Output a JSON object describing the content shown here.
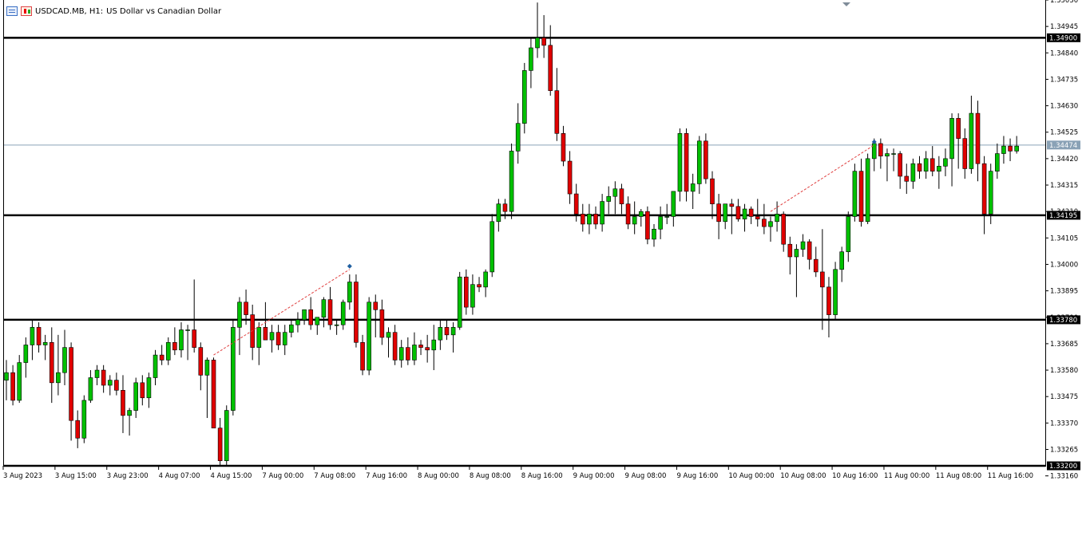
{
  "window": {
    "symbol_label": "USDCAD.MB, H1:",
    "description": "US Dollar vs Canadian Dollar"
  },
  "icons": [
    "list-icon",
    "candlestick-icon"
  ],
  "colors": {
    "bull": "#00c000",
    "bear": "#e00000",
    "wick": "#000000",
    "horizontal_line": "#000000",
    "bid_line": "#8aa2b6",
    "trend_dashed": "#e04040",
    "tag_background_bid": "#8aa2b6"
  },
  "chart_data": {
    "type": "candlestick",
    "symbol": "USDCAD.MB",
    "timeframe": "H1",
    "ylim": [
      1.332,
      1.3505
    ],
    "y_ticks": [
      "1.35050",
      "1.34945",
      "1.34840",
      "1.34735",
      "1.34630",
      "1.34525",
      "1.34420",
      "1.34315",
      "1.34210",
      "1.34105",
      "1.34000",
      "1.33895",
      "1.33790",
      "1.33685",
      "1.33580",
      "1.33475",
      "1.33370",
      "1.33265",
      "1.33160"
    ],
    "x_ticks": [
      {
        "label": "3 Aug 2023",
        "index": 0
      },
      {
        "label": "3 Aug 15:00",
        "index": 8
      },
      {
        "label": "3 Aug 23:00",
        "index": 16
      },
      {
        "label": "4 Aug 07:00",
        "index": 24
      },
      {
        "label": "4 Aug 15:00",
        "index": 32
      },
      {
        "label": "7 Aug 00:00",
        "index": 40
      },
      {
        "label": "7 Aug 08:00",
        "index": 48
      },
      {
        "label": "7 Aug 16:00",
        "index": 56
      },
      {
        "label": "8 Aug 00:00",
        "index": 64
      },
      {
        "label": "8 Aug 08:00",
        "index": 72
      },
      {
        "label": "8 Aug 16:00",
        "index": 80
      },
      {
        "label": "9 Aug 00:00",
        "index": 88
      },
      {
        "label": "9 Aug 08:00",
        "index": 96
      },
      {
        "label": "9 Aug 16:00",
        "index": 104
      },
      {
        "label": "10 Aug 00:00",
        "index": 112
      },
      {
        "label": "10 Aug 08:00",
        "index": 120
      },
      {
        "label": "10 Aug 16:00",
        "index": 128
      },
      {
        "label": "11 Aug 00:00",
        "index": 136
      },
      {
        "label": "11 Aug 08:00",
        "index": 144
      },
      {
        "label": "11 Aug 16:00",
        "index": 152
      }
    ],
    "horizontal_levels": [
      {
        "name": "resistance",
        "value": 1.349,
        "label": "1.34900"
      },
      {
        "name": "pivot",
        "value": 1.34195,
        "label": "1.34195"
      },
      {
        "name": "support",
        "value": 1.3378,
        "label": "1.33780"
      },
      {
        "name": "low",
        "value": 1.332,
        "label": "1.33200"
      }
    ],
    "bid": {
      "value": 1.34474,
      "label": "1.34474"
    },
    "candles": [
      [
        1.3354,
        1.3362,
        1.3346,
        1.3357
      ],
      [
        1.3357,
        1.336,
        1.3344,
        1.3346
      ],
      [
        1.3346,
        1.3364,
        1.3345,
        1.3361
      ],
      [
        1.3361,
        1.3371,
        1.3355,
        1.3368
      ],
      [
        1.3368,
        1.3378,
        1.3362,
        1.3375
      ],
      [
        1.3375,
        1.3377,
        1.3365,
        1.3368
      ],
      [
        1.3368,
        1.3372,
        1.3362,
        1.3369
      ],
      [
        1.3369,
        1.3375,
        1.3345,
        1.3353
      ],
      [
        1.3353,
        1.3372,
        1.3348,
        1.3357
      ],
      [
        1.3357,
        1.3374,
        1.3352,
        1.3367
      ],
      [
        1.3367,
        1.3369,
        1.333,
        1.3338
      ],
      [
        1.3338,
        1.3342,
        1.3327,
        1.3331
      ],
      [
        1.3331,
        1.3348,
        1.3329,
        1.3346
      ],
      [
        1.3346,
        1.3358,
        1.3345,
        1.3355
      ],
      [
        1.3355,
        1.336,
        1.3352,
        1.3358
      ],
      [
        1.3358,
        1.336,
        1.3349,
        1.3352
      ],
      [
        1.3352,
        1.3356,
        1.3348,
        1.3354
      ],
      [
        1.3354,
        1.3357,
        1.3348,
        1.335
      ],
      [
        1.335,
        1.3356,
        1.3333,
        1.334
      ],
      [
        1.334,
        1.3343,
        1.3332,
        1.3342
      ],
      [
        1.3342,
        1.3355,
        1.3339,
        1.3353
      ],
      [
        1.3353,
        1.3356,
        1.3344,
        1.3347
      ],
      [
        1.3347,
        1.3357,
        1.3343,
        1.3355
      ],
      [
        1.3355,
        1.3366,
        1.3352,
        1.3364
      ],
      [
        1.3364,
        1.3368,
        1.336,
        1.3362
      ],
      [
        1.3362,
        1.3371,
        1.336,
        1.3369
      ],
      [
        1.3369,
        1.3375,
        1.3364,
        1.3366
      ],
      [
        1.3366,
        1.3377,
        1.3363,
        1.3374
      ],
      [
        1.3374,
        1.3376,
        1.3362,
        1.3374
      ],
      [
        1.3374,
        1.3394,
        1.3365,
        1.3367
      ],
      [
        1.3367,
        1.3369,
        1.335,
        1.3356
      ],
      [
        1.3356,
        1.3363,
        1.3339,
        1.3362
      ],
      [
        1.3362,
        1.3363,
        1.3335,
        1.3335
      ],
      [
        1.3335,
        1.3339,
        1.332,
        1.3322
      ],
      [
        1.3322,
        1.3344,
        1.332,
        1.3342
      ],
      [
        1.3342,
        1.3378,
        1.334,
        1.3375
      ],
      [
        1.3375,
        1.3387,
        1.3364,
        1.3385
      ],
      [
        1.3385,
        1.339,
        1.3376,
        1.338
      ],
      [
        1.338,
        1.3384,
        1.3362,
        1.3367
      ],
      [
        1.3367,
        1.3377,
        1.336,
        1.3375
      ],
      [
        1.3375,
        1.3385,
        1.337,
        1.337
      ],
      [
        1.337,
        1.3376,
        1.3365,
        1.3373
      ],
      [
        1.3373,
        1.3376,
        1.3366,
        1.3368
      ],
      [
        1.3368,
        1.3376,
        1.3364,
        1.3373
      ],
      [
        1.3373,
        1.3378,
        1.3371,
        1.3376
      ],
      [
        1.3376,
        1.3381,
        1.3373,
        1.3378
      ],
      [
        1.3378,
        1.3382,
        1.3376,
        1.3382
      ],
      [
        1.3382,
        1.3387,
        1.3374,
        1.3376
      ],
      [
        1.3376,
        1.3379,
        1.3372,
        1.3379
      ],
      [
        1.3379,
        1.3387,
        1.3375,
        1.3386
      ],
      [
        1.3386,
        1.3391,
        1.3374,
        1.3376
      ],
      [
        1.3376,
        1.3378,
        1.3372,
        1.3376
      ],
      [
        1.3376,
        1.3386,
        1.3374,
        1.3385
      ],
      [
        1.3385,
        1.3396,
        1.3382,
        1.3393
      ],
      [
        1.3393,
        1.3396,
        1.3367,
        1.3369
      ],
      [
        1.3369,
        1.3372,
        1.3356,
        1.3358
      ],
      [
        1.3358,
        1.3387,
        1.3356,
        1.3385
      ],
      [
        1.3385,
        1.3388,
        1.3371,
        1.3382
      ],
      [
        1.3382,
        1.3386,
        1.3368,
        1.3371
      ],
      [
        1.3371,
        1.3375,
        1.3363,
        1.3373
      ],
      [
        1.3373,
        1.3376,
        1.336,
        1.3362
      ],
      [
        1.3362,
        1.337,
        1.3359,
        1.3367
      ],
      [
        1.3367,
        1.3371,
        1.336,
        1.3362
      ],
      [
        1.3362,
        1.3373,
        1.336,
        1.3368
      ],
      [
        1.3368,
        1.337,
        1.3364,
        1.3367
      ],
      [
        1.3367,
        1.3372,
        1.3361,
        1.3366
      ],
      [
        1.3366,
        1.3376,
        1.3358,
        1.337
      ],
      [
        1.337,
        1.3378,
        1.3366,
        1.3375
      ],
      [
        1.3375,
        1.3378,
        1.337,
        1.3372
      ],
      [
        1.3372,
        1.3377,
        1.3365,
        1.3375
      ],
      [
        1.3375,
        1.3397,
        1.3374,
        1.3395
      ],
      [
        1.3395,
        1.3398,
        1.338,
        1.3383
      ],
      [
        1.3383,
        1.3396,
        1.338,
        1.3392
      ],
      [
        1.3392,
        1.3395,
        1.3389,
        1.3391
      ],
      [
        1.3391,
        1.3398,
        1.3387,
        1.3397
      ],
      [
        1.3397,
        1.342,
        1.3395,
        1.3417
      ],
      [
        1.3417,
        1.3426,
        1.3413,
        1.3424
      ],
      [
        1.3424,
        1.3426,
        1.3418,
        1.3421
      ],
      [
        1.3421,
        1.3448,
        1.3418,
        1.3445
      ],
      [
        1.3445,
        1.3464,
        1.344,
        1.3456
      ],
      [
        1.3456,
        1.348,
        1.3452,
        1.3477
      ],
      [
        1.3477,
        1.349,
        1.347,
        1.3486
      ],
      [
        1.3486,
        1.3504,
        1.3482,
        1.349
      ],
      [
        1.349,
        1.3499,
        1.3482,
        1.3487
      ],
      [
        1.3487,
        1.3495,
        1.3467,
        1.3469
      ],
      [
        1.3469,
        1.3478,
        1.3449,
        1.3452
      ],
      [
        1.3452,
        1.3455,
        1.3439,
        1.3441
      ],
      [
        1.3441,
        1.3445,
        1.3424,
        1.3428
      ],
      [
        1.3428,
        1.3432,
        1.3417,
        1.342
      ],
      [
        1.342,
        1.3424,
        1.3413,
        1.3416
      ],
      [
        1.3416,
        1.3424,
        1.3412,
        1.342
      ],
      [
        1.342,
        1.3423,
        1.3414,
        1.3416
      ],
      [
        1.3416,
        1.3428,
        1.3413,
        1.3425
      ],
      [
        1.3425,
        1.3431,
        1.342,
        1.3427
      ],
      [
        1.3427,
        1.3433,
        1.342,
        1.343
      ],
      [
        1.343,
        1.3432,
        1.342,
        1.3424
      ],
      [
        1.3424,
        1.3427,
        1.3414,
        1.3416
      ],
      [
        1.3416,
        1.3425,
        1.3412,
        1.3419
      ],
      [
        1.3419,
        1.3422,
        1.3415,
        1.3421
      ],
      [
        1.3421,
        1.3423,
        1.3408,
        1.341
      ],
      [
        1.341,
        1.3416,
        1.3407,
        1.3414
      ],
      [
        1.3414,
        1.3423,
        1.341,
        1.3419
      ],
      [
        1.3419,
        1.3424,
        1.3416,
        1.3419
      ],
      [
        1.3419,
        1.3429,
        1.3415,
        1.3429
      ],
      [
        1.3429,
        1.3454,
        1.3425,
        1.3452
      ],
      [
        1.3452,
        1.3454,
        1.3425,
        1.3429
      ],
      [
        1.3429,
        1.3436,
        1.3422,
        1.3432
      ],
      [
        1.3432,
        1.3451,
        1.3428,
        1.3449
      ],
      [
        1.3449,
        1.3452,
        1.3432,
        1.3434
      ],
      [
        1.3434,
        1.3437,
        1.3418,
        1.3424
      ],
      [
        1.3424,
        1.3428,
        1.341,
        1.3417
      ],
      [
        1.3417,
        1.3424,
        1.3414,
        1.3424
      ],
      [
        1.3424,
        1.3426,
        1.3412,
        1.3423
      ],
      [
        1.3423,
        1.3426,
        1.3417,
        1.3418
      ],
      [
        1.3418,
        1.3424,
        1.3413,
        1.3422
      ],
      [
        1.3422,
        1.3423,
        1.3416,
        1.3419
      ],
      [
        1.3419,
        1.3426,
        1.3415,
        1.3418
      ],
      [
        1.3418,
        1.3424,
        1.3412,
        1.3415
      ],
      [
        1.3415,
        1.3419,
        1.3409,
        1.3417
      ],
      [
        1.3417,
        1.3425,
        1.3413,
        1.342
      ],
      [
        1.342,
        1.3421,
        1.3405,
        1.3408
      ],
      [
        1.3408,
        1.3411,
        1.3396,
        1.3403
      ],
      [
        1.3403,
        1.3408,
        1.3387,
        1.3406
      ],
      [
        1.3406,
        1.3412,
        1.3403,
        1.3409
      ],
      [
        1.3409,
        1.341,
        1.3398,
        1.3402
      ],
      [
        1.3402,
        1.3407,
        1.3395,
        1.3397
      ],
      [
        1.3397,
        1.3414,
        1.3374,
        1.3391
      ],
      [
        1.3391,
        1.3395,
        1.3371,
        1.338
      ],
      [
        1.338,
        1.3401,
        1.3378,
        1.3398
      ],
      [
        1.3398,
        1.3407,
        1.3393,
        1.3405
      ],
      [
        1.3405,
        1.3421,
        1.3401,
        1.3419
      ],
      [
        1.3419,
        1.344,
        1.3417,
        1.3437
      ],
      [
        1.3437,
        1.3442,
        1.3415,
        1.3417
      ],
      [
        1.3417,
        1.3444,
        1.3416,
        1.3442
      ],
      [
        1.3442,
        1.345,
        1.3437,
        1.3448
      ],
      [
        1.3448,
        1.345,
        1.3438,
        1.3443
      ],
      [
        1.3443,
        1.3446,
        1.3433,
        1.3444
      ],
      [
        1.3444,
        1.3446,
        1.3437,
        1.3444
      ],
      [
        1.3444,
        1.3445,
        1.343,
        1.3435
      ],
      [
        1.3435,
        1.344,
        1.3428,
        1.3433
      ],
      [
        1.3433,
        1.3442,
        1.343,
        1.344
      ],
      [
        1.344,
        1.3443,
        1.3434,
        1.3437
      ],
      [
        1.3437,
        1.3445,
        1.3434,
        1.3442
      ],
      [
        1.3442,
        1.3447,
        1.3435,
        1.3437
      ],
      [
        1.3437,
        1.3443,
        1.343,
        1.3439
      ],
      [
        1.3439,
        1.3446,
        1.3435,
        1.3442
      ],
      [
        1.3442,
        1.346,
        1.3431,
        1.3458
      ],
      [
        1.3458,
        1.346,
        1.3438,
        1.345
      ],
      [
        1.345,
        1.3454,
        1.3434,
        1.3438
      ],
      [
        1.3438,
        1.3467,
        1.3436,
        1.346
      ],
      [
        1.346,
        1.3465,
        1.3433,
        1.344
      ],
      [
        1.344,
        1.3443,
        1.3412,
        1.342
      ],
      [
        1.342,
        1.344,
        1.3416,
        1.3437
      ],
      [
        1.3437,
        1.3448,
        1.3434,
        1.3444
      ],
      [
        1.3444,
        1.3451,
        1.344,
        1.3447
      ],
      [
        1.3447,
        1.345,
        1.3441,
        1.3445
      ],
      [
        1.3445,
        1.3451,
        1.3444,
        1.3447
      ]
    ],
    "trend_lines": [
      {
        "from": [
          32,
          1.3364
        ],
        "to": [
          53,
          1.3398
        ],
        "marker": 53
      },
      {
        "from": [
          118,
          1.3421
        ],
        "to": [
          134,
          1.34474
        ],
        "marker": 134
      }
    ]
  }
}
